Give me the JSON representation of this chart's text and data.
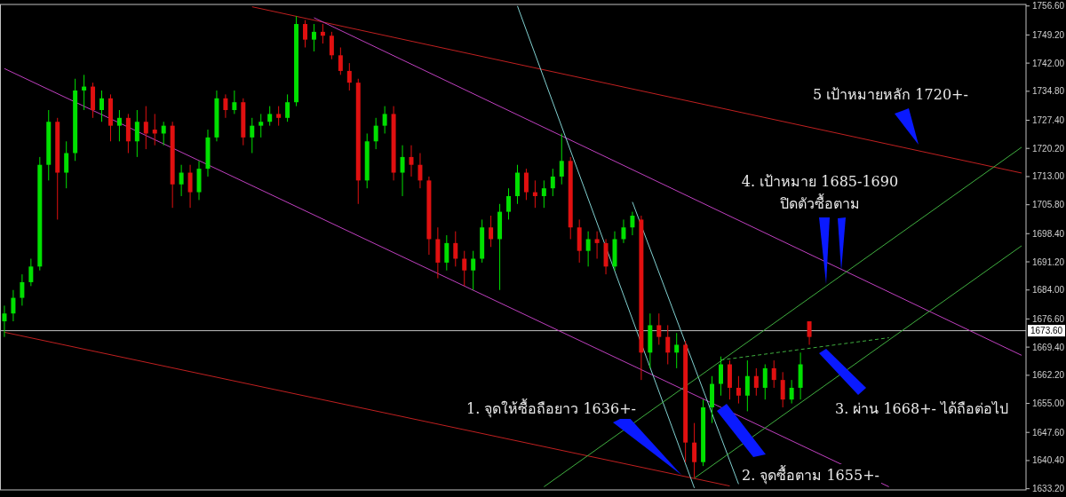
{
  "chart_data": {
    "type": "candlestick",
    "categories": [
      null,
      null,
      null,
      null,
      null,
      null,
      null,
      null,
      null,
      null,
      null,
      null,
      null,
      null,
      null,
      null,
      null,
      null,
      null,
      null,
      null,
      null,
      null,
      null,
      null,
      null,
      null,
      null,
      null,
      null,
      null,
      null,
      null,
      null,
      null,
      null,
      null,
      null,
      null,
      null,
      null,
      null,
      null,
      null,
      null,
      null,
      null,
      null,
      null,
      null,
      null,
      null,
      null,
      null,
      null,
      null,
      null,
      null,
      null,
      null,
      null,
      null,
      null,
      null,
      null,
      null,
      null,
      null,
      null,
      null,
      null,
      null,
      null,
      null,
      null,
      null,
      null,
      null,
      null,
      null,
      null,
      null,
      null,
      null,
      null,
      null,
      null,
      null,
      null,
      null,
      null,
      null,
      null,
      null,
      null,
      null,
      null,
      null,
      null,
      null,
      null,
      null,
      null,
      null,
      null,
      null,
      null,
      null,
      null,
      null,
      null,
      null,
      null,
      null,
      null,
      null
    ],
    "ohlc": [
      [
        1676,
        1680,
        1672,
        1678
      ],
      [
        1678,
        1684,
        1676,
        1682
      ],
      [
        1682,
        1688,
        1680,
        1686
      ],
      [
        1686,
        1692,
        1685,
        1690
      ],
      [
        1690,
        1718,
        1689,
        1716
      ],
      [
        1716,
        1730,
        1712,
        1727
      ],
      [
        1727,
        1728,
        1702,
        1714
      ],
      [
        1714,
        1722,
        1710,
        1719
      ],
      [
        1719,
        1738,
        1717,
        1735
      ],
      [
        1735,
        1739,
        1730,
        1736
      ],
      [
        1736,
        1737,
        1728,
        1730
      ],
      [
        1730,
        1735,
        1727,
        1733
      ],
      [
        1733,
        1734,
        1722,
        1726
      ],
      [
        1726,
        1730,
        1722,
        1728
      ],
      [
        1728,
        1729,
        1719,
        1722
      ],
      [
        1722,
        1730,
        1718,
        1727
      ],
      [
        1727,
        1731,
        1720,
        1724
      ],
      [
        1725,
        1729,
        1721,
        1724
      ],
      [
        1724,
        1727,
        1721,
        1726
      ],
      [
        1726,
        1727,
        1705,
        1711
      ],
      [
        1711,
        1716,
        1708,
        1714
      ],
      [
        1714,
        1716,
        1705,
        1709
      ],
      [
        1709,
        1717,
        1707,
        1715
      ],
      [
        1715,
        1725,
        1713,
        1723
      ],
      [
        1723,
        1735,
        1722,
        1733
      ],
      [
        1733,
        1734,
        1728,
        1730
      ],
      [
        1730,
        1735,
        1729,
        1732
      ],
      [
        1732,
        1733,
        1721,
        1723
      ],
      [
        1723,
        1728,
        1719,
        1726
      ],
      [
        1726,
        1729,
        1723,
        1727
      ],
      [
        1727,
        1731,
        1726,
        1729
      ],
      [
        1729,
        1731,
        1726,
        1728
      ],
      [
        1728,
        1734,
        1727,
        1732
      ],
      [
        1732,
        1754,
        1731,
        1752
      ],
      [
        1752,
        1753,
        1746,
        1748
      ],
      [
        1748,
        1752,
        1745,
        1750
      ],
      [
        1750,
        1752,
        1747,
        1749
      ],
      [
        1749,
        1750,
        1743,
        1744
      ],
      [
        1744,
        1746,
        1739,
        1740
      ],
      [
        1740,
        1742,
        1735,
        1737
      ],
      [
        1737,
        1738,
        1706,
        1712
      ],
      [
        1712,
        1724,
        1710,
        1722
      ],
      [
        1722,
        1728,
        1720,
        1726
      ],
      [
        1726,
        1731,
        1724,
        1729
      ],
      [
        1729,
        1731,
        1712,
        1714
      ],
      [
        1714,
        1721,
        1708,
        1718
      ],
      [
        1718,
        1721,
        1713,
        1716
      ],
      [
        1716,
        1719,
        1710,
        1712
      ],
      [
        1712,
        1713,
        1693,
        1697
      ],
      [
        1697,
        1700,
        1687,
        1691
      ],
      [
        1691,
        1698,
        1689,
        1696
      ],
      [
        1696,
        1699,
        1690,
        1692
      ],
      [
        1692,
        1694,
        1685,
        1689
      ],
      [
        1689,
        1694,
        1684,
        1692
      ],
      [
        1692,
        1702,
        1691,
        1700
      ],
      [
        1700,
        1703,
        1695,
        1697
      ],
      [
        1697,
        1706,
        1684,
        1704
      ],
      [
        1704,
        1710,
        1702,
        1708
      ],
      [
        1708,
        1716,
        1706,
        1714
      ],
      [
        1714,
        1715,
        1707,
        1709
      ],
      [
        1709,
        1712,
        1705,
        1708
      ],
      [
        1708,
        1712,
        1705,
        1710
      ],
      [
        1710,
        1715,
        1708,
        1713
      ],
      [
        1713,
        1724,
        1711,
        1717
      ],
      [
        1717,
        1718,
        1697,
        1700
      ],
      [
        1700,
        1702,
        1691,
        1694
      ],
      [
        1694,
        1699,
        1690,
        1697
      ],
      [
        1697,
        1699,
        1692,
        1696
      ],
      [
        1696,
        1697,
        1688,
        1690
      ],
      [
        1690,
        1699,
        1689,
        1697
      ],
      [
        1697,
        1702,
        1696,
        1700
      ],
      [
        1700,
        1704,
        1698,
        1703
      ],
      [
        1702,
        1703,
        1661,
        1668
      ],
      [
        1668,
        1678,
        1664,
        1675
      ],
      [
        1675,
        1678,
        1670,
        1672
      ],
      [
        1672,
        1675,
        1665,
        1668
      ],
      [
        1668,
        1673,
        1664,
        1670
      ],
      [
        1670,
        1671,
        1640,
        1645
      ],
      [
        1645,
        1650,
        1636,
        1640
      ],
      [
        1640,
        1656,
        1639,
        1654
      ],
      [
        1654,
        1662,
        1650,
        1660
      ],
      [
        1660,
        1667,
        1657,
        1665
      ],
      [
        1665,
        1666,
        1656,
        1659
      ],
      [
        1659,
        1662,
        1655,
        1657
      ],
      [
        1657,
        1666,
        1653,
        1662
      ],
      [
        1662,
        1664,
        1657,
        1659
      ],
      [
        1659,
        1665,
        1656,
        1664
      ],
      [
        1664,
        1666,
        1659,
        1661
      ],
      [
        1661,
        1663,
        1654,
        1656
      ],
      [
        1656,
        1661,
        1655,
        1659
      ],
      [
        1659,
        1668,
        1656,
        1665
      ],
      [
        1676,
        1676,
        1670,
        1672
      ],
      null,
      null,
      null,
      null,
      null,
      null,
      null,
      null,
      null,
      null,
      null,
      null,
      null,
      null,
      null,
      null,
      null,
      null,
      null,
      null,
      null,
      null,
      null,
      null
    ],
    "colors": [
      "#00e000",
      "#00e000",
      "#00e000",
      "#00e000",
      "#00e000",
      "#00e000",
      "#e01010",
      "#00e000",
      "#00e000",
      "#00e000",
      "#e01010",
      "#00e000",
      "#e01010",
      "#00e000",
      "#e01010",
      "#00e000",
      "#e01010",
      "#e01010",
      "#00e000",
      "#e01010",
      "#00e000",
      "#e01010",
      "#00e000",
      "#00e000",
      "#00e000",
      "#e01010",
      "#00e000",
      "#e01010",
      "#00e000",
      "#00e000",
      "#00e000",
      "#e01010",
      "#00e000",
      "#00e000",
      "#e01010",
      "#00e000",
      "#e01010",
      "#e01010",
      "#e01010",
      "#e01010",
      "#e01010",
      "#00e000",
      "#00e000",
      "#00e000",
      "#e01010",
      "#00e000",
      "#e01010",
      "#e01010",
      "#e01010",
      "#e01010",
      "#00e000",
      "#e01010",
      "#e01010",
      "#00e000",
      "#00e000",
      "#e01010",
      "#00e000",
      "#00e000",
      "#00e000",
      "#e01010",
      "#e01010",
      "#00e000",
      "#00e000",
      "#00e000",
      "#e01010",
      "#e01010",
      "#00e000",
      "#e01010",
      "#e01010",
      "#00e000",
      "#00e000",
      "#00e000",
      "#e01010",
      "#00e000",
      "#e01010",
      "#e01010",
      "#00e000",
      "#e01010",
      "#e01010",
      "#00e000",
      "#00e000",
      "#00e000",
      "#e01010",
      "#e01010",
      "#00e000",
      "#e01010",
      "#00e000",
      "#e01010",
      "#e01010",
      "#00e000",
      "#00e000",
      "#e01010",
      null,
      null,
      null,
      null,
      null,
      null,
      null,
      null,
      null,
      null,
      null,
      null,
      null,
      null,
      null,
      null,
      null,
      null,
      null,
      null,
      null,
      null,
      null,
      null
    ],
    "series": [
      {
        "type": "line",
        "color": "#c02020",
        "values": [
          null,
          null,
          null,
          null,
          null,
          null,
          null,
          null,
          null,
          null,
          null,
          null,
          null,
          null,
          null,
          null,
          null,
          null,
          null,
          null,
          null,
          null,
          null,
          null,
          null,
          null,
          null,
          null,
          1756.4,
          null,
          null,
          null,
          null,
          null,
          null,
          null,
          null,
          null,
          null,
          null,
          null,
          null,
          null,
          null,
          null,
          null,
          null,
          null,
          null,
          null,
          null,
          null,
          null,
          null,
          null,
          null,
          null,
          null,
          null,
          null,
          null,
          null,
          null,
          null,
          null,
          null,
          null,
          null,
          null,
          null,
          null,
          null,
          null,
          null,
          null,
          null,
          null,
          null,
          null,
          null,
          null,
          null,
          null,
          null,
          null,
          null,
          null,
          null,
          null,
          null,
          null,
          null,
          null,
          null,
          null,
          null,
          null,
          null,
          null,
          null,
          null,
          null,
          null,
          null,
          null,
          null,
          null,
          null,
          null,
          null,
          null,
          null,
          null,
          null,
          null,
          1713.9
        ]
      },
      {
        "type": "line",
        "color": "#c02020",
        "values": [
          1673.2,
          null,
          null,
          null,
          null,
          null,
          null,
          null,
          null,
          null,
          null,
          null,
          null,
          null,
          null,
          null,
          null,
          null,
          null,
          null,
          null,
          null,
          null,
          null,
          null,
          null,
          null,
          null,
          null,
          null,
          null,
          null,
          null,
          null,
          null,
          null,
          null,
          null,
          null,
          null,
          null,
          null,
          null,
          null,
          null,
          null,
          null,
          null,
          null,
          null,
          null,
          null,
          null,
          null,
          null,
          null,
          null,
          null,
          null,
          null,
          null,
          null,
          null,
          null,
          null,
          null,
          null,
          null,
          null,
          null,
          null,
          null,
          null,
          null,
          null,
          null,
          null,
          null,
          null,
          null,
          null,
          null,
          1633.9,
          null,
          null,
          null,
          null,
          null,
          null,
          null,
          null,
          null,
          null,
          null,
          null,
          null,
          null,
          null,
          null,
          null,
          null,
          null,
          null,
          null,
          null,
          null,
          null,
          null,
          null,
          null,
          null,
          null,
          null,
          null,
          null,
          null
        ]
      },
      {
        "type": "line",
        "color": "#c040c0",
        "values": [
          null,
          null,
          null,
          null,
          null,
          null,
          null,
          null,
          null,
          null,
          null,
          null,
          null,
          null,
          null,
          null,
          null,
          null,
          null,
          null,
          null,
          null,
          null,
          null,
          null,
          null,
          null,
          null,
          null,
          null,
          null,
          null,
          null,
          null,
          null,
          1753.6,
          null,
          null,
          null,
          null,
          null,
          null,
          null,
          null,
          null,
          null,
          null,
          null,
          null,
          null,
          null,
          null,
          null,
          null,
          null,
          null,
          null,
          null,
          null,
          null,
          null,
          null,
          null,
          null,
          null,
          null,
          null,
          null,
          null,
          null,
          null,
          null,
          null,
          null,
          null,
          null,
          null,
          null,
          null,
          null,
          null,
          null,
          null,
          null,
          null,
          null,
          null,
          null,
          null,
          null,
          null,
          null,
          null,
          null,
          null,
          null,
          null,
          null,
          null,
          null,
          null,
          null,
          null,
          null,
          null,
          null,
          null,
          null,
          null,
          null,
          null,
          null,
          null,
          null,
          null,
          1667.3
        ]
      },
      {
        "type": "line",
        "color": "#c040c0",
        "values": [
          1740.6,
          null,
          null,
          null,
          null,
          null,
          null,
          null,
          null,
          null,
          null,
          null,
          null,
          null,
          null,
          null,
          null,
          null,
          null,
          null,
          null,
          null,
          null,
          null,
          null,
          null,
          null,
          null,
          null,
          null,
          null,
          null,
          null,
          null,
          null,
          null,
          null,
          null,
          null,
          null,
          null,
          null,
          null,
          null,
          null,
          null,
          null,
          null,
          null,
          null,
          null,
          null,
          null,
          null,
          null,
          null,
          null,
          null,
          null,
          null,
          null,
          null,
          null,
          null,
          null,
          null,
          null,
          null,
          null,
          null,
          null,
          null,
          null,
          null,
          null,
          null,
          null,
          null,
          null,
          null,
          null,
          null,
          null,
          null,
          null,
          null,
          null,
          null,
          null,
          null,
          null,
          null,
          null,
          null,
          null,
          null,
          null,
          null,
          null,
          null,
          1633.7,
          null,
          null,
          null,
          null,
          null,
          null,
          null,
          null,
          null,
          null,
          null,
          null,
          null,
          null,
          null
        ]
      },
      {
        "type": "line",
        "color": "#80d0d0",
        "values": [
          null,
          null,
          null,
          null,
          null,
          null,
          null,
          null,
          null,
          null,
          null,
          null,
          null,
          null,
          null,
          null,
          null,
          null,
          null,
          null,
          null,
          null,
          null,
          null,
          null,
          null,
          null,
          null,
          null,
          null,
          null,
          null,
          null,
          null,
          null,
          null,
          null,
          null,
          null,
          null,
          null,
          null,
          null,
          null,
          null,
          null,
          null,
          null,
          null,
          null,
          null,
          null,
          null,
          null,
          null,
          null,
          null,
          null,
          1756.6,
          null,
          null,
          null,
          null,
          null,
          null,
          null,
          null,
          null,
          null,
          null,
          null,
          null,
          null,
          null,
          null,
          null,
          null,
          null,
          1633.4,
          null,
          null,
          null,
          null,
          null,
          null,
          null,
          null,
          null,
          null,
          null,
          null,
          null,
          null,
          null,
          null,
          null,
          null,
          null,
          null,
          null,
          null,
          null,
          null,
          null,
          null,
          null,
          null,
          null,
          null,
          null,
          null,
          null,
          null,
          null,
          null,
          null
        ]
      },
      {
        "type": "line",
        "color": "#80d0d0",
        "values": [
          null,
          null,
          null,
          null,
          null,
          null,
          null,
          null,
          null,
          null,
          null,
          null,
          null,
          null,
          null,
          null,
          null,
          null,
          null,
          null,
          null,
          null,
          null,
          null,
          null,
          null,
          null,
          null,
          null,
          null,
          null,
          null,
          null,
          null,
          null,
          null,
          null,
          null,
          null,
          null,
          null,
          null,
          null,
          null,
          null,
          null,
          null,
          null,
          null,
          null,
          null,
          null,
          null,
          null,
          null,
          null,
          null,
          null,
          null,
          null,
          null,
          null,
          null,
          null,
          null,
          null,
          null,
          null,
          null,
          null,
          null,
          1706.5,
          null,
          null,
          null,
          null,
          null,
          null,
          null,
          null,
          null,
          null,
          null,
          1634.4,
          null,
          null,
          null,
          null,
          null,
          null,
          null,
          null,
          null,
          null,
          null,
          null,
          null,
          null,
          null,
          null,
          null,
          null,
          null,
          null,
          null,
          null,
          null,
          null,
          null,
          null,
          null,
          null,
          null,
          null,
          null,
          null
        ]
      },
      {
        "type": "line",
        "color": "#40b040",
        "values": [
          null,
          null,
          null,
          null,
          null,
          null,
          null,
          null,
          null,
          null,
          null,
          null,
          null,
          null,
          null,
          null,
          null,
          null,
          null,
          null,
          null,
          null,
          null,
          null,
          null,
          null,
          null,
          null,
          null,
          null,
          null,
          null,
          null,
          null,
          null,
          null,
          null,
          null,
          null,
          null,
          null,
          null,
          null,
          null,
          null,
          null,
          null,
          null,
          null,
          null,
          null,
          null,
          null,
          null,
          null,
          null,
          null,
          null,
          null,
          null,
          null,
          1633.7,
          null,
          null,
          null,
          null,
          null,
          null,
          null,
          null,
          null,
          null,
          null,
          null,
          null,
          null,
          null,
          null,
          null,
          null,
          null,
          null,
          null,
          null,
          null,
          null,
          null,
          null,
          null,
          null,
          null,
          null,
          null,
          null,
          null,
          null,
          null,
          null,
          null,
          null,
          null,
          null,
          null,
          null,
          null,
          null,
          null,
          null,
          null,
          null,
          null,
          null,
          null,
          null,
          null,
          1720.5
        ]
      },
      {
        "type": "line",
        "color": "#40b040",
        "values": [
          null,
          null,
          null,
          null,
          null,
          null,
          null,
          null,
          null,
          null,
          null,
          null,
          null,
          null,
          null,
          null,
          null,
          null,
          null,
          null,
          null,
          null,
          null,
          null,
          null,
          null,
          null,
          null,
          null,
          null,
          null,
          null,
          null,
          null,
          null,
          null,
          null,
          null,
          null,
          null,
          null,
          null,
          null,
          null,
          null,
          null,
          null,
          null,
          null,
          null,
          null,
          null,
          null,
          null,
          null,
          null,
          null,
          null,
          null,
          null,
          null,
          null,
          null,
          null,
          null,
          null,
          null,
          null,
          null,
          null,
          null,
          null,
          null,
          null,
          null,
          null,
          null,
          null,
          1635.9,
          null,
          null,
          null,
          null,
          null,
          null,
          null,
          null,
          null,
          null,
          null,
          null,
          null,
          null,
          null,
          null,
          null,
          null,
          null,
          null,
          null,
          null,
          null,
          null,
          null,
          null,
          null,
          null,
          null,
          null,
          null,
          null,
          null,
          null,
          null,
          null,
          1695.3
        ]
      },
      {
        "type": "line",
        "color": "#40b040",
        "line_style": "dashed",
        "values": [
          null,
          null,
          null,
          null,
          null,
          null,
          null,
          null,
          null,
          null,
          null,
          null,
          null,
          null,
          null,
          null,
          null,
          null,
          null,
          null,
          null,
          null,
          null,
          null,
          null,
          null,
          null,
          null,
          null,
          null,
          null,
          null,
          null,
          null,
          null,
          null,
          null,
          null,
          null,
          null,
          null,
          null,
          null,
          null,
          null,
          null,
          null,
          null,
          null,
          null,
          null,
          null,
          null,
          null,
          null,
          null,
          null,
          null,
          null,
          null,
          null,
          null,
          null,
          null,
          null,
          null,
          null,
          null,
          null,
          null,
          null,
          null,
          null,
          null,
          null,
          null,
          null,
          null,
          null,
          null,
          null,
          1666.1,
          null,
          null,
          null,
          null,
          null,
          null,
          null,
          null,
          null,
          null,
          null,
          null,
          null,
          null,
          null,
          null,
          null,
          null,
          1671.8,
          null,
          null,
          null,
          null,
          null,
          null,
          null,
          null,
          null,
          null,
          null,
          null,
          null,
          null,
          null
        ]
      }
    ],
    "ylim": [
      1632.9,
      1757.0
    ],
    "yticks": [
      {
        "value": 1756.6,
        "label": "1756.60"
      },
      {
        "value": 1749.2,
        "label": "1749.20"
      },
      {
        "value": 1742.0,
        "label": "1742.00"
      },
      {
        "value": 1734.8,
        "label": "1734.80"
      },
      {
        "value": 1727.4,
        "label": "1727.40"
      },
      {
        "value": 1720.2,
        "label": "1720.20"
      },
      {
        "value": 1713.0,
        "label": "1713.00"
      },
      {
        "value": 1705.8,
        "label": "1705.80"
      },
      {
        "value": 1698.4,
        "label": "1698.40"
      },
      {
        "value": 1691.2,
        "label": "1691.20"
      },
      {
        "value": 1684.0,
        "label": "1684.00"
      },
      {
        "value": 1676.6,
        "label": "1676.60"
      },
      {
        "value": 1669.4,
        "label": "1669.40"
      },
      {
        "value": 1662.2,
        "label": "1662.20"
      },
      {
        "value": 1655.0,
        "label": "1655.00"
      },
      {
        "value": 1647.6,
        "label": "1647.60"
      },
      {
        "value": 1640.4,
        "label": "1640.40"
      },
      {
        "value": 1633.2,
        "label": "1633.20"
      }
    ],
    "tick_labels": "y",
    "ref_lines": [
      {
        "axis": "y",
        "value": 1673.6,
        "label": "1673.60",
        "color": "#c0c0c0"
      }
    ],
    "annotations": [
      "5 เป้าหมายหลัก 1720+-",
      "4. เป้าหมาย 1685-1690",
      "ปิดตัวซื้อตาม",
      "3. ผ่าน 1668+- ได้ถือต่อไป",
      "1. จุดให้ซื้อถือยาว 1636+-",
      "2. จุดซื้อตาม 1655+-"
    ]
  }
}
